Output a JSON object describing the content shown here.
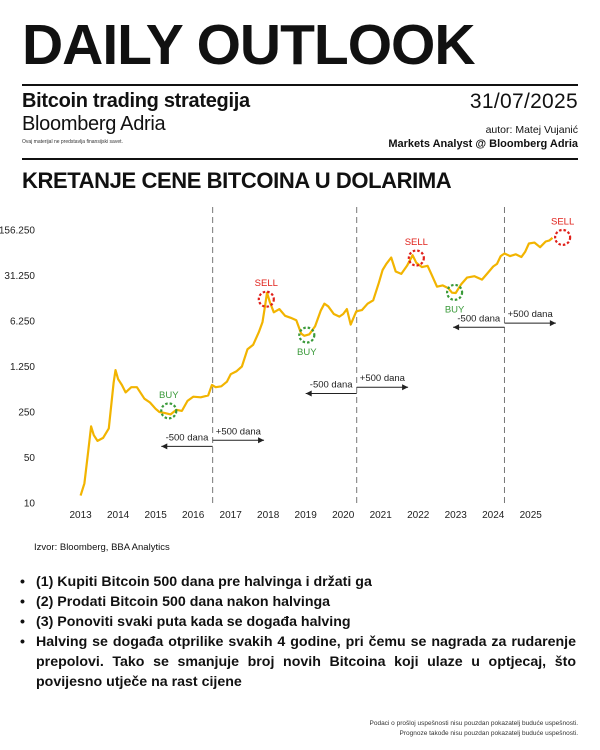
{
  "header": {
    "title": "DAILY OUTLOOK",
    "subtitle": "Bitcoin trading strategija",
    "brand": "Bloomberg Adria",
    "disclaimer": "Ovaj materijal ne predstavlja finansijski savet.",
    "date": "31/07/2025",
    "author": "autor: Matej Vujanić",
    "role": "Markets Analyst @ Bloomberg Adria"
  },
  "section_title": "KRETANJE CENE BITCOINA U DOLARIMA",
  "source": "Izvor: Bloomberg, BBA Analytics",
  "bullets": [
    "(1) Kupiti Bitcoin 500 dana pre halvinga i držati ga",
    "(2) Prodati Bitcoin 500 dana nakon halvinga",
    "(3) Ponoviti svaki puta kada se događa halving",
    "Halving se događa otprilike svakih 4 godine, pri čemu se nagrada za rudarenje prepolovi. Tako se smanjuje broj novih Bitcoina koji ulaze u optjecaj, što povijesno utječe na rast cijene"
  ],
  "footnotes": [
    "Podaci o prošloj uspešnosti nisu pouzdan pokazatelj buduće uspešnosti.",
    "Prognoze takođe nisu pouzdan pokazatelj buduće uspešnosti."
  ],
  "chart_data": {
    "type": "line",
    "y_scale": "log",
    "ylim": [
      10,
      200000
    ],
    "xlim": [
      2012.85,
      2026.1
    ],
    "y_ticks": [
      10,
      50,
      250,
      1250,
      6250,
      31250,
      156250
    ],
    "y_tick_labels": [
      "10",
      "50",
      "250",
      "1.250",
      "6.250",
      "31.250",
      "156.250"
    ],
    "x_ticks": [
      "2013",
      "2014",
      "2015",
      "2016",
      "2017",
      "2018",
      "2019",
      "2020",
      "2021",
      "2022",
      "2023",
      "2024",
      "2025"
    ],
    "grid": false,
    "line_color": "#f2b400",
    "series": [
      {
        "x": [
          2013.0,
          2013.1,
          2013.2,
          2013.28,
          2013.35,
          2013.45,
          2013.6,
          2013.75,
          2013.88,
          2013.93,
          2014.0,
          2014.1,
          2014.2,
          2014.35,
          2014.5,
          2014.7,
          2014.85,
          2015.0,
          2015.1,
          2015.25,
          2015.4,
          2015.55,
          2015.7,
          2015.85,
          2016.0,
          2016.2,
          2016.4,
          2016.5,
          2016.6,
          2016.75,
          2016.9,
          2017.0,
          2017.15,
          2017.3,
          2017.45,
          2017.6,
          2017.75,
          2017.85,
          2017.92,
          2017.97,
          2018.05,
          2018.15,
          2018.3,
          2018.45,
          2018.6,
          2018.75,
          2018.88,
          2018.96,
          2019.1,
          2019.25,
          2019.4,
          2019.5,
          2019.6,
          2019.75,
          2019.9,
          2020.0,
          2020.1,
          2020.2,
          2020.35,
          2020.5,
          2020.65,
          2020.8,
          2020.95,
          2021.05,
          2021.15,
          2021.28,
          2021.4,
          2021.55,
          2021.7,
          2021.85,
          2021.95,
          2022.1,
          2022.25,
          2022.35,
          2022.5,
          2022.65,
          2022.8,
          2022.9,
          2023.0,
          2023.15,
          2023.3,
          2023.5,
          2023.7,
          2023.85,
          2024.0,
          2024.1,
          2024.2,
          2024.3,
          2024.45,
          2024.6,
          2024.75,
          2024.85,
          2024.95,
          2025.1,
          2025.25,
          2025.4,
          2025.5,
          2025.58
        ],
        "y": [
          13,
          20,
          60,
          150,
          110,
          90,
          100,
          140,
          700,
          1100,
          800,
          650,
          500,
          600,
          600,
          400,
          350,
          280,
          250,
          240,
          230,
          270,
          260,
          370,
          430,
          420,
          450,
          650,
          600,
          620,
          730,
          950,
          1050,
          1250,
          2300,
          2700,
          4200,
          6000,
          11000,
          17000,
          12000,
          8500,
          9500,
          7500,
          7000,
          6400,
          4000,
          3700,
          3900,
          5200,
          9000,
          11500,
          10500,
          8000,
          7300,
          8000,
          9500,
          5500,
          8800,
          9200,
          11500,
          13000,
          24000,
          38000,
          47000,
          59000,
          36000,
          33000,
          44000,
          64000,
          49000,
          42000,
          44000,
          33000,
          21000,
          22000,
          20000,
          17000,
          16800,
          23000,
          29000,
          30500,
          27000,
          34000,
          43000,
          47000,
          62000,
          68000,
          62000,
          66000,
          60000,
          72000,
          97000,
          100000,
          85000,
          104000,
          108000,
          118000
        ]
      }
    ],
    "halvings": [
      2016.52,
      2020.36,
      2024.3
    ],
    "markers": [
      {
        "label": "BUY",
        "x": 2015.35,
        "y": 260,
        "color": "#3a9a3a"
      },
      {
        "label": "SELL",
        "x": 2017.95,
        "y": 13500,
        "color": "#e0201a"
      },
      {
        "label": "BUY",
        "x": 2019.03,
        "y": 3800,
        "color": "#3a9a3a"
      },
      {
        "label": "SELL",
        "x": 2021.95,
        "y": 58000,
        "color": "#e0201a"
      },
      {
        "label": "BUY",
        "x": 2022.97,
        "y": 17200,
        "color": "#3a9a3a"
      },
      {
        "label": "SELL",
        "x": 2025.85,
        "y": 120000,
        "color": "#e0201a"
      }
    ],
    "annotations": [
      {
        "text": "-500 dana",
        "direction": "left",
        "x_from": 2016.52,
        "x_to": 2015.15,
        "y": 74
      },
      {
        "text": "+500 dana",
        "direction": "right",
        "x_from": 2016.52,
        "x_to": 2017.89,
        "y": 92
      },
      {
        "text": "-500 dana",
        "direction": "left",
        "x_from": 2020.36,
        "x_to": 2019.0,
        "y": 480
      },
      {
        "text": "+500 dana",
        "direction": "right",
        "x_from": 2020.36,
        "x_to": 2021.73,
        "y": 600
      },
      {
        "text": "-500 dana",
        "direction": "left",
        "x_from": 2024.3,
        "x_to": 2022.93,
        "y": 5000
      },
      {
        "text": "+500 dana",
        "direction": "right",
        "x_from": 2024.3,
        "x_to": 2025.67,
        "y": 5800
      }
    ]
  }
}
